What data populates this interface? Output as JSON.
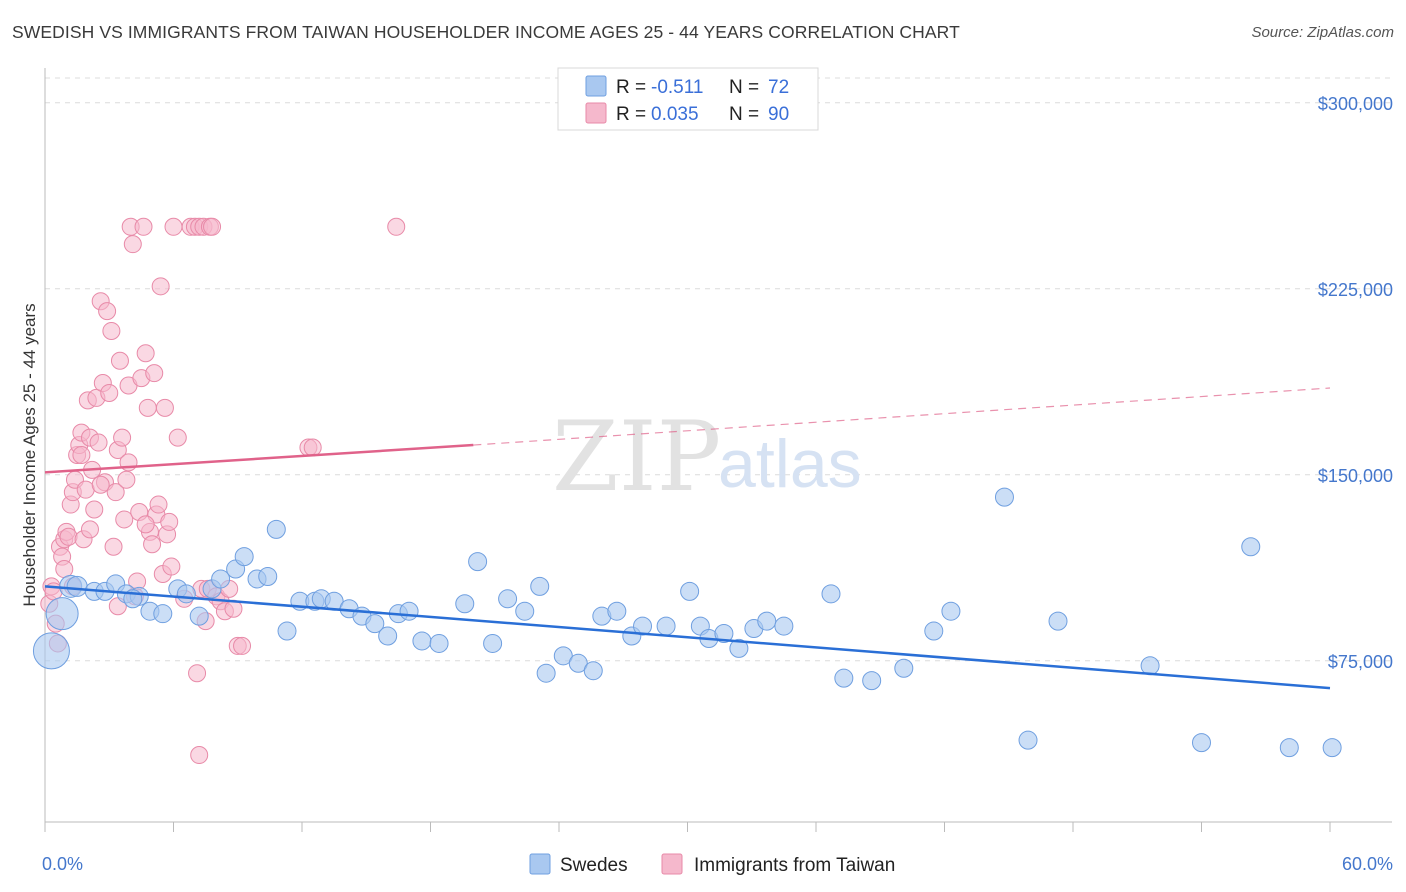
{
  "title": "SWEDISH VS IMMIGRANTS FROM TAIWAN HOUSEHOLDER INCOME AGES 25 - 44 YEARS CORRELATION CHART",
  "source": "Source: ZipAtlas.com",
  "watermark": {
    "zip": "ZIP",
    "atlas": "atlas"
  },
  "legend_top": {
    "rows": [
      {
        "r_label": "R = ",
        "r_value": "-0.511",
        "n_label": "N = ",
        "n_value": "72",
        "color": "#a9c8f0"
      },
      {
        "r_label": "R = ",
        "r_value": "0.035",
        "n_label": "N = ",
        "n_value": "90",
        "color": "#f5b8cc"
      }
    ]
  },
  "legend_bottom": {
    "swedes": "Swedes",
    "taiwan": "Immigrants from Taiwan"
  },
  "chart_data": {
    "type": "scatter",
    "title": "SWEDISH VS IMMIGRANTS FROM TAIWAN HOUSEHOLDER INCOME AGES 25 - 44 YEARS CORRELATION CHART",
    "xlabel": "",
    "ylabel": "Householder Income Ages 25 - 44 years",
    "xlim": [
      0,
      60
    ],
    "ylim": [
      10000,
      310000
    ],
    "x_tick_labels": [
      "0.0%",
      "60.0%"
    ],
    "y_ticks": [
      75000,
      150000,
      225000,
      300000
    ],
    "y_tick_labels": [
      "$75,000",
      "$150,000",
      "$225,000",
      "$300,000"
    ],
    "grid": true,
    "legend": "top-center",
    "series": [
      {
        "name": "Swedes",
        "color": "#6f9fe0",
        "fill": "#a9c8f0",
        "r": -0.511,
        "n": 72,
        "trend": {
          "x": [
            0,
            60
          ],
          "y": [
            105000,
            64000
          ],
          "color": "#2a6fd6"
        },
        "points": [
          [
            0.3,
            79000,
            18
          ],
          [
            0.8,
            94000,
            16
          ],
          [
            1.2,
            105000,
            11
          ],
          [
            1.5,
            105000,
            10
          ],
          [
            2.3,
            103000,
            9
          ],
          [
            2.8,
            103000,
            9
          ],
          [
            3.3,
            106000,
            9
          ],
          [
            3.8,
            102000,
            9
          ],
          [
            4.4,
            101000,
            9
          ],
          [
            4.9,
            95000,
            9
          ],
          [
            5.5,
            94000,
            9
          ],
          [
            6.2,
            104000,
            9
          ],
          [
            6.6,
            102000,
            9
          ],
          [
            7.2,
            93000,
            9
          ],
          [
            7.8,
            104000,
            9
          ],
          [
            8.2,
            108000,
            9
          ],
          [
            8.9,
            112000,
            9
          ],
          [
            9.3,
            117000,
            9
          ],
          [
            9.9,
            108000,
            9
          ],
          [
            10.4,
            109000,
            9
          ],
          [
            10.8,
            128000,
            9
          ],
          [
            11.3,
            87000,
            9
          ],
          [
            11.9,
            99000,
            9
          ],
          [
            12.6,
            99000,
            9
          ],
          [
            12.9,
            100000,
            9
          ],
          [
            13.5,
            99000,
            9
          ],
          [
            14.2,
            96000,
            9
          ],
          [
            14.8,
            93000,
            9
          ],
          [
            15.4,
            90000,
            9
          ],
          [
            16.0,
            85000,
            9
          ],
          [
            16.5,
            94000,
            9
          ],
          [
            17.0,
            95000,
            9
          ],
          [
            17.6,
            83000,
            9
          ],
          [
            18.4,
            82000,
            9
          ],
          [
            19.6,
            98000,
            9
          ],
          [
            20.2,
            115000,
            9
          ],
          [
            20.9,
            82000,
            9
          ],
          [
            21.6,
            100000,
            9
          ],
          [
            22.4,
            95000,
            9
          ],
          [
            23.1,
            105000,
            9
          ],
          [
            23.4,
            70000,
            9
          ],
          [
            24.2,
            77000,
            9
          ],
          [
            24.9,
            74000,
            9
          ],
          [
            25.6,
            71000,
            9
          ],
          [
            26.0,
            93000,
            9
          ],
          [
            26.7,
            95000,
            9
          ],
          [
            27.4,
            85000,
            9
          ],
          [
            27.9,
            89000,
            9
          ],
          [
            29.0,
            89000,
            9
          ],
          [
            30.1,
            103000,
            9
          ],
          [
            30.6,
            89000,
            9
          ],
          [
            31.0,
            84000,
            9
          ],
          [
            31.7,
            86000,
            9
          ],
          [
            32.4,
            80000,
            9
          ],
          [
            33.1,
            88000,
            9
          ],
          [
            33.7,
            91000,
            9
          ],
          [
            34.5,
            89000,
            9
          ],
          [
            36.7,
            102000,
            9
          ],
          [
            37.3,
            68000,
            9
          ],
          [
            38.6,
            67000,
            9
          ],
          [
            40.1,
            72000,
            9
          ],
          [
            41.5,
            87000,
            9
          ],
          [
            42.3,
            95000,
            9
          ],
          [
            44.8,
            141000,
            9
          ],
          [
            45.9,
            43000,
            9
          ],
          [
            47.3,
            91000,
            9
          ],
          [
            51.6,
            73000,
            9
          ],
          [
            54.0,
            42000,
            9
          ],
          [
            56.3,
            121000,
            9
          ],
          [
            58.1,
            40000,
            9
          ],
          [
            60.1,
            40000,
            9
          ],
          [
            4.1,
            100000,
            9
          ]
        ]
      },
      {
        "name": "Immigrants from Taiwan",
        "color": "#e88aa8",
        "fill": "#f5b8cc",
        "r": 0.035,
        "n": 90,
        "trend": {
          "x": [
            0,
            20
          ],
          "y": [
            151000,
            162000
          ],
          "x_dash": [
            20,
            60
          ],
          "y_dash": [
            162000,
            185000
          ],
          "color": "#e0628a"
        },
        "points": [
          [
            0.2,
            98000
          ],
          [
            0.3,
            105000
          ],
          [
            0.4,
            103000
          ],
          [
            0.5,
            90000
          ],
          [
            0.6,
            82000
          ],
          [
            0.7,
            121000
          ],
          [
            0.8,
            117000
          ],
          [
            0.9,
            124000
          ],
          [
            1.0,
            127000
          ],
          [
            1.1,
            125000
          ],
          [
            1.2,
            138000
          ],
          [
            1.3,
            143000
          ],
          [
            1.4,
            148000
          ],
          [
            1.5,
            158000
          ],
          [
            1.6,
            162000
          ],
          [
            1.7,
            167000
          ],
          [
            1.8,
            124000
          ],
          [
            1.9,
            144000
          ],
          [
            2.0,
            180000
          ],
          [
            2.1,
            165000
          ],
          [
            2.2,
            152000
          ],
          [
            2.4,
            181000
          ],
          [
            2.5,
            163000
          ],
          [
            2.6,
            220000
          ],
          [
            2.7,
            187000
          ],
          [
            2.8,
            147000
          ],
          [
            2.9,
            216000
          ],
          [
            3.0,
            183000
          ],
          [
            3.1,
            208000
          ],
          [
            3.2,
            121000
          ],
          [
            3.3,
            143000
          ],
          [
            3.4,
            160000
          ],
          [
            3.5,
            196000
          ],
          [
            3.6,
            165000
          ],
          [
            3.7,
            132000
          ],
          [
            3.8,
            148000
          ],
          [
            3.9,
            186000
          ],
          [
            4.0,
            250000
          ],
          [
            4.1,
            243000
          ],
          [
            4.2,
            101000
          ],
          [
            4.3,
            107000
          ],
          [
            4.4,
            135000
          ],
          [
            4.5,
            189000
          ],
          [
            4.6,
            250000
          ],
          [
            4.7,
            199000
          ],
          [
            4.8,
            177000
          ],
          [
            4.9,
            127000
          ],
          [
            5.0,
            122000
          ],
          [
            5.1,
            191000
          ],
          [
            5.2,
            134000
          ],
          [
            5.3,
            138000
          ],
          [
            5.4,
            226000
          ],
          [
            5.5,
            110000
          ],
          [
            5.6,
            177000
          ],
          [
            5.7,
            126000
          ],
          [
            5.8,
            131000
          ],
          [
            6.0,
            250000
          ],
          [
            6.2,
            165000
          ],
          [
            6.8,
            250000
          ],
          [
            7.0,
            250000
          ],
          [
            7.1,
            70000
          ],
          [
            7.2,
            250000
          ],
          [
            7.3,
            104000
          ],
          [
            7.4,
            250000
          ],
          [
            7.5,
            91000
          ],
          [
            7.6,
            104000
          ],
          [
            7.7,
            250000
          ],
          [
            7.8,
            250000
          ],
          [
            8.0,
            101000
          ],
          [
            8.2,
            99000
          ],
          [
            8.4,
            95000
          ],
          [
            8.6,
            104000
          ],
          [
            9.0,
            81000
          ],
          [
            9.2,
            81000
          ],
          [
            12.3,
            161000
          ],
          [
            12.5,
            161000
          ],
          [
            16.4,
            250000
          ],
          [
            7.2,
            37000
          ],
          [
            2.3,
            136000
          ],
          [
            3.4,
            97000
          ],
          [
            1.3,
            105000
          ],
          [
            0.9,
            112000
          ],
          [
            2.6,
            146000
          ],
          [
            3.9,
            155000
          ],
          [
            6.5,
            100000
          ],
          [
            5.9,
            113000
          ],
          [
            4.7,
            130000
          ],
          [
            8.8,
            96000
          ],
          [
            1.7,
            158000
          ],
          [
            2.1,
            128000
          ]
        ]
      }
    ]
  }
}
